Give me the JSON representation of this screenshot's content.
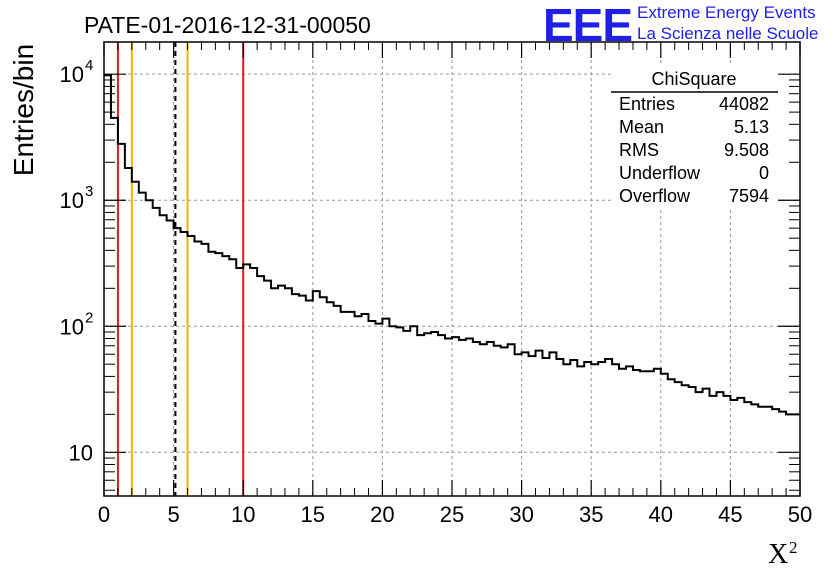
{
  "chart_data": {
    "type": "bar",
    "histogram": true,
    "title": "PATE-01-2016-12-31-00050",
    "xlabel": "X",
    "xlabel_superscript": "2",
    "ylabel": "Entries/bin",
    "xlim": [
      0,
      50
    ],
    "ylim": [
      4.5,
      18000
    ],
    "yscale": "log",
    "grid": true,
    "bin_width": 1,
    "x_tick_labels": [
      "0",
      "5",
      "10",
      "15",
      "20",
      "25",
      "30",
      "35",
      "40",
      "45",
      "50"
    ],
    "x_tick_values": [
      0,
      5,
      10,
      15,
      20,
      25,
      30,
      35,
      40,
      45,
      50
    ],
    "y_tick_labels": [
      {
        "value": 10,
        "base": "10",
        "exp": ""
      },
      {
        "value": 100,
        "base": "10",
        "exp": "2"
      },
      {
        "value": 1000,
        "base": "10",
        "exp": "3"
      },
      {
        "value": 10000,
        "base": "10",
        "exp": "4"
      }
    ],
    "values": [
      9800,
      4500,
      2800,
      1800,
      1400,
      1150,
      1000,
      870,
      760,
      690,
      600,
      560,
      520,
      470,
      450,
      390,
      380,
      360,
      340,
      290,
      310,
      290,
      250,
      230,
      200,
      210,
      200,
      180,
      175,
      160,
      190,
      170,
      155,
      145,
      130,
      130,
      120,
      125,
      110,
      105,
      115,
      100,
      98,
      92,
      100,
      85,
      88,
      90,
      85,
      80,
      82,
      78,
      80,
      75,
      72,
      75,
      70,
      68,
      72,
      60,
      62,
      58,
      64,
      56,
      62,
      55,
      50,
      54,
      48,
      52,
      50,
      52,
      55,
      50,
      46,
      48,
      45,
      44,
      44,
      46,
      42,
      38,
      36,
      34,
      33,
      30,
      32,
      28,
      30,
      28,
      26,
      27,
      25,
      24,
      23,
      23,
      22,
      21,
      20,
      20
    ],
    "vertical_lines": [
      {
        "x": 1,
        "color": "#dd1c1c",
        "style": "solid"
      },
      {
        "x": 2,
        "color": "#f0b400",
        "style": "solid"
      },
      {
        "x": 5.13,
        "color": "#000000",
        "style": "dashed"
      },
      {
        "x": 6,
        "color": "#f0b400",
        "style": "solid"
      },
      {
        "x": 10,
        "color": "#dd1c1c",
        "style": "solid"
      }
    ],
    "stats_box": {
      "title": "ChiSquare",
      "rows": [
        {
          "label": "Entries",
          "value": "44082"
        },
        {
          "label": "Mean",
          "value": "5.13"
        },
        {
          "label": "RMS",
          "value": "9.508"
        },
        {
          "label": "Underflow",
          "value": "0"
        },
        {
          "label": "Overflow",
          "value": "7594"
        }
      ]
    }
  },
  "logo": {
    "big": "EEE",
    "line1": "Extreme Energy Events",
    "line2": "La Scienza nelle Scuole"
  }
}
